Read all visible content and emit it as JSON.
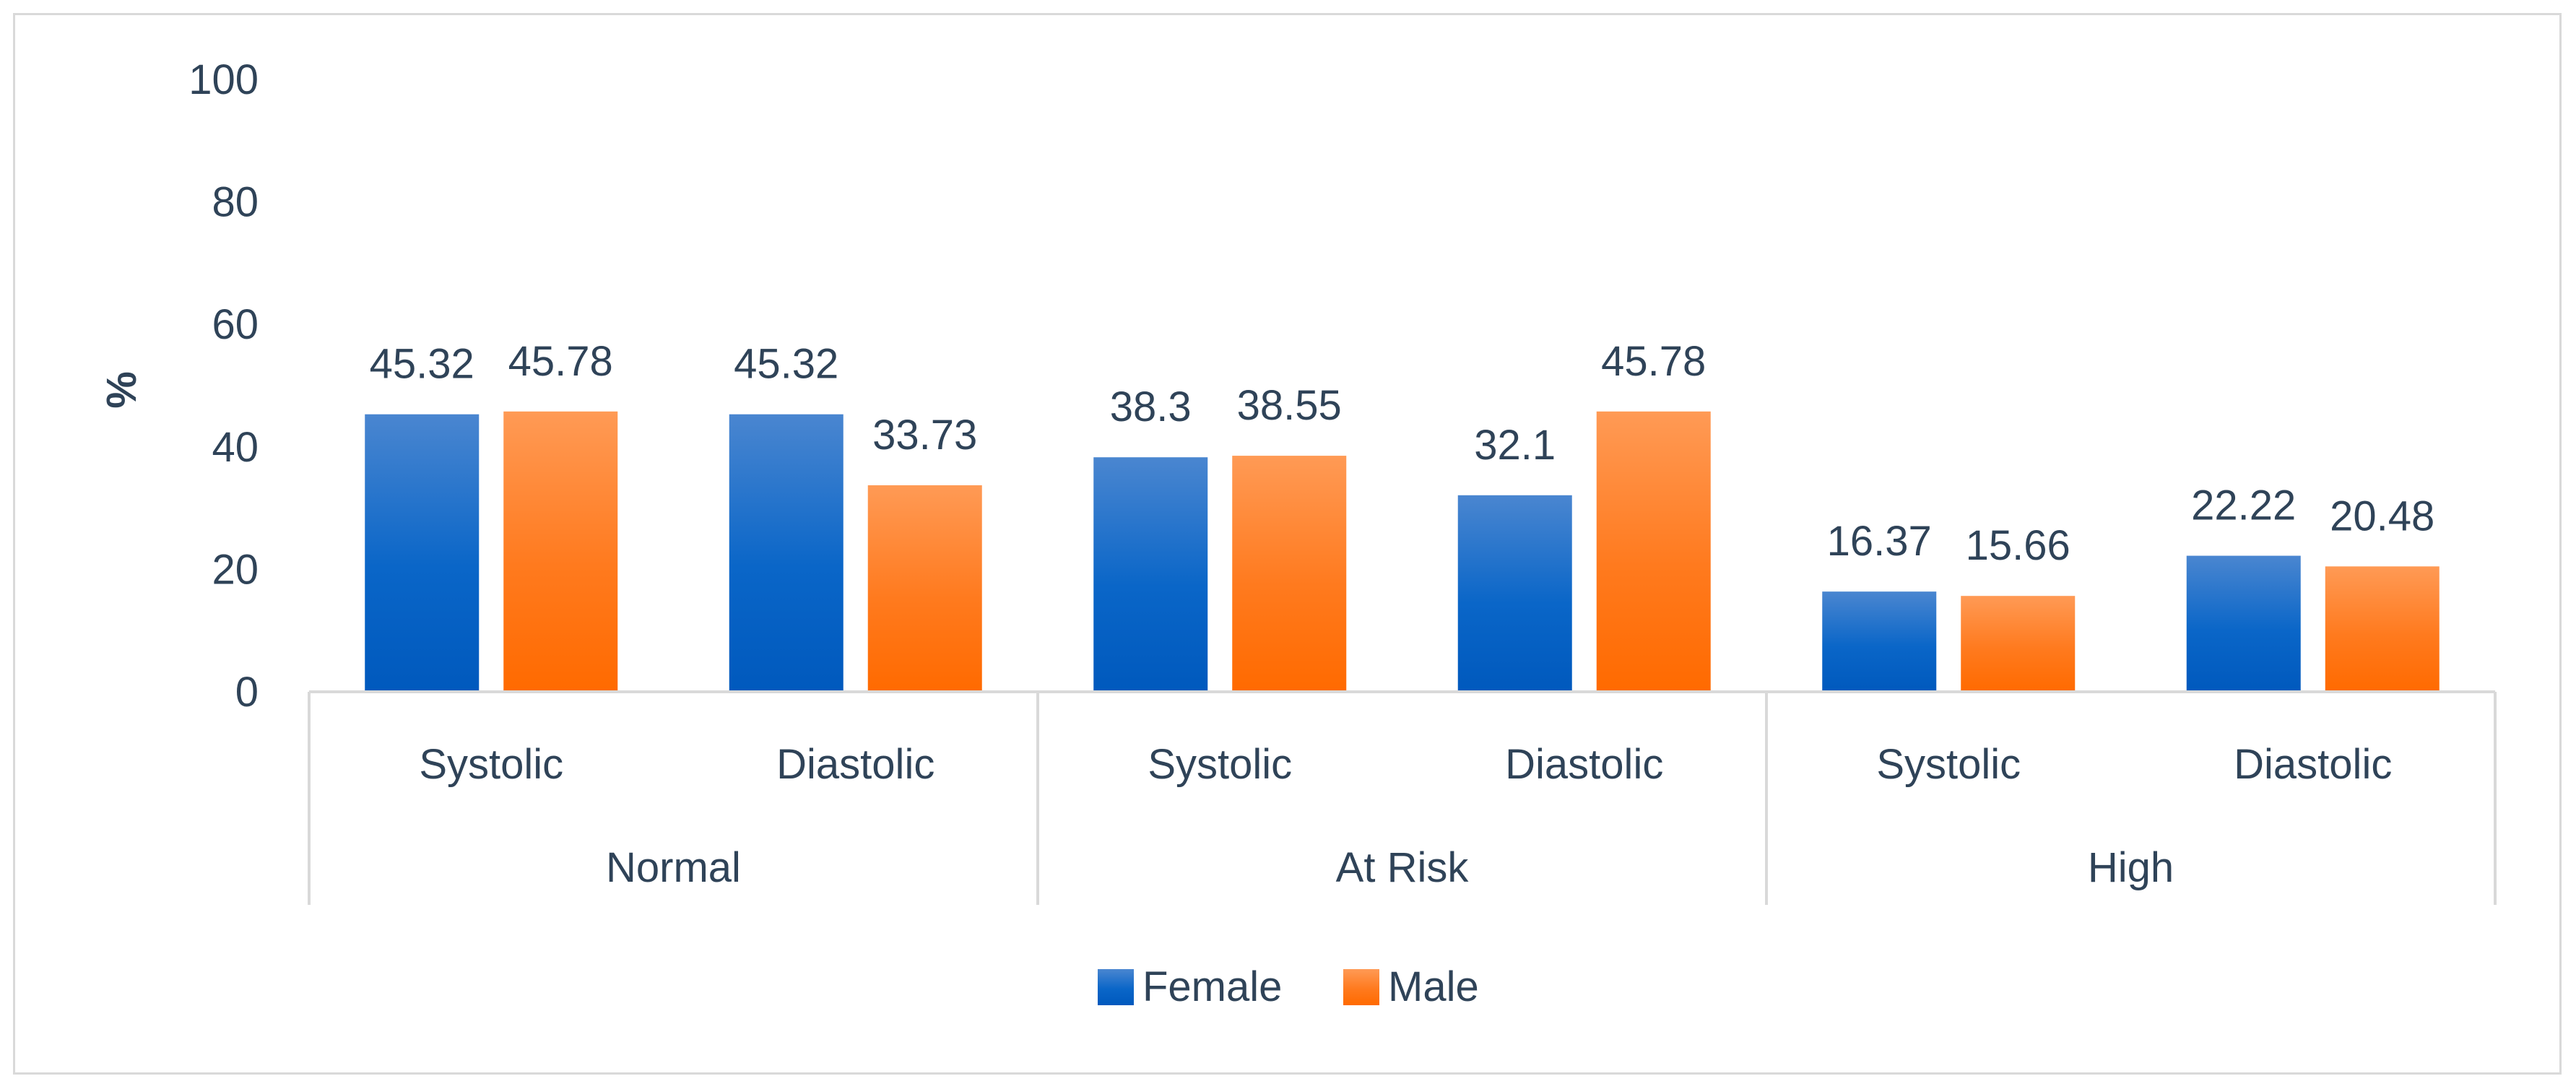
{
  "chart_data": {
    "type": "bar",
    "ylabel": "%",
    "ylim": [
      0,
      100
    ],
    "yticks": [
      0,
      20,
      40,
      60,
      80,
      100
    ],
    "groups": [
      "Normal",
      "At Risk",
      "High"
    ],
    "categories": [
      "Systolic",
      "Diastolic"
    ],
    "series": [
      {
        "name": "Female",
        "color": "#1565c0",
        "values": [
          [
            45.32,
            45.32
          ],
          [
            38.3,
            32.1
          ],
          [
            16.37,
            22.22
          ]
        ],
        "labels": [
          [
            "45.32",
            "45.32"
          ],
          [
            "38.3",
            "32.1"
          ],
          [
            "16.37",
            "22.22"
          ]
        ]
      },
      {
        "name": "Male",
        "color": "#ff6a00",
        "values": [
          [
            45.78,
            33.73
          ],
          [
            38.55,
            45.78
          ],
          [
            15.66,
            20.48
          ]
        ],
        "labels": [
          [
            "45.78",
            "33.73"
          ],
          [
            "38.55",
            "45.78"
          ],
          [
            "15.66",
            "20.48"
          ]
        ]
      }
    ],
    "grid": false,
    "legend_position": "bottom"
  }
}
